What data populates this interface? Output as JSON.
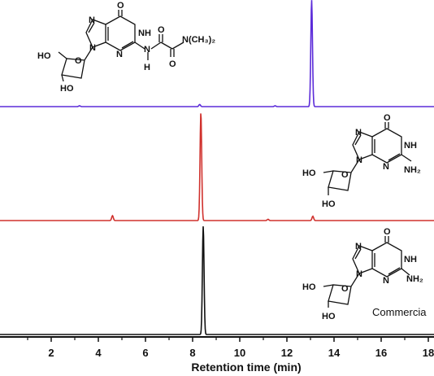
{
  "chart_data": {
    "type": "line",
    "title": "",
    "xlabel": "Retention time (min)",
    "ylabel": "",
    "xlim": [
      0,
      19.3
    ],
    "x_ticks": [
      2,
      4,
      6,
      8,
      10,
      12,
      14,
      16,
      18
    ],
    "x_tick_labels": [
      "2",
      "4",
      "6",
      "8",
      "10",
      "12",
      "14",
      "16",
      "18"
    ],
    "grid": false,
    "series": [
      {
        "color": "#5b2bd9",
        "peaks": [
          {
            "x": 13.05,
            "height": 1.0
          },
          {
            "x": 8.3,
            "height": 0.02
          },
          {
            "x": 3.2,
            "height": 0.008
          },
          {
            "x": 11.5,
            "height": 0.008
          }
        ]
      },
      {
        "color": "#d0312d",
        "peaks": [
          {
            "x": 8.35,
            "height": 1.0
          },
          {
            "x": 4.6,
            "height": 0.045
          },
          {
            "x": 13.1,
            "height": 0.04
          },
          {
            "x": 11.2,
            "height": 0.012
          }
        ]
      },
      {
        "color": "#111111",
        "peaks": [
          {
            "x": 8.45,
            "height": 1.0
          }
        ]
      }
    ]
  },
  "structures": {
    "top": {
      "carbonyl_o": "O",
      "n_ring_top": "N",
      "nh": "NH",
      "n_imid_left": "N",
      "n_glycosidic": "N",
      "n_pyrim_bottom": "N",
      "link_n": "N",
      "link_h": "H",
      "amide_o1": "O",
      "amide_o2": "O",
      "dimethylamino": "N(CH₃)₂",
      "ho_5prime": "HO",
      "ring_o": "O",
      "ho_3prime": "HO"
    },
    "middle": {
      "carbonyl_o": "O",
      "n_ring_top": "N",
      "nh": "NH",
      "n_imid_left": "N",
      "n_glycosidic": "N",
      "n_pyrim_bottom": "N",
      "amine": "NH₂",
      "ho_5prime": "HO",
      "ring_o": "O",
      "ho_3prime": "HO"
    },
    "bottom": {
      "carbonyl_o": "O",
      "n_ring_top": "N",
      "nh": "NH",
      "n_imid_left": "N",
      "n_glycosidic": "N",
      "n_pyrim_bottom": "N",
      "amine": "NH₂",
      "ho_5prime": "HO",
      "ring_o": "O",
      "ho_3prime": "HO"
    }
  },
  "annotation": "Commercia"
}
